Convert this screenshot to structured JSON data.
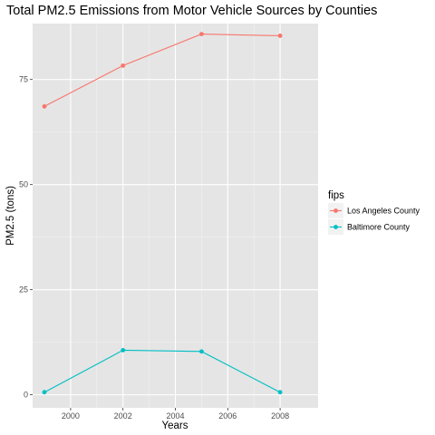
{
  "chart_data": {
    "type": "line",
    "title": "Total PM2.5 Emissions from Motor Vehicle Sources by Counties",
    "xlabel": "Years",
    "ylabel": "PM2.5 (tons)",
    "x": [
      1999,
      2002,
      2005,
      2008
    ],
    "xlim": [
      1998.55,
      2009.45
    ],
    "ylim": [
      -3.1,
      88.3
    ],
    "xticks": [
      2000,
      2002,
      2004,
      2006,
      2008
    ],
    "yticks": [
      0,
      25,
      50,
      75
    ],
    "xtick_labels": [
      "2000",
      "2002",
      "2004",
      "2006",
      "2008"
    ],
    "ytick_labels": [
      "0",
      "25",
      "50",
      "75"
    ],
    "grid": true,
    "legend": {
      "title": "fips",
      "placement": "right"
    },
    "series": [
      {
        "name": "Los Angeles County",
        "color": "#F8766D",
        "values": [
          68.6,
          78.3,
          85.8,
          85.4
        ]
      },
      {
        "name": "Baltimore County",
        "color": "#00BFC4",
        "values": [
          0.6,
          10.6,
          10.3,
          0.6
        ]
      }
    ]
  }
}
